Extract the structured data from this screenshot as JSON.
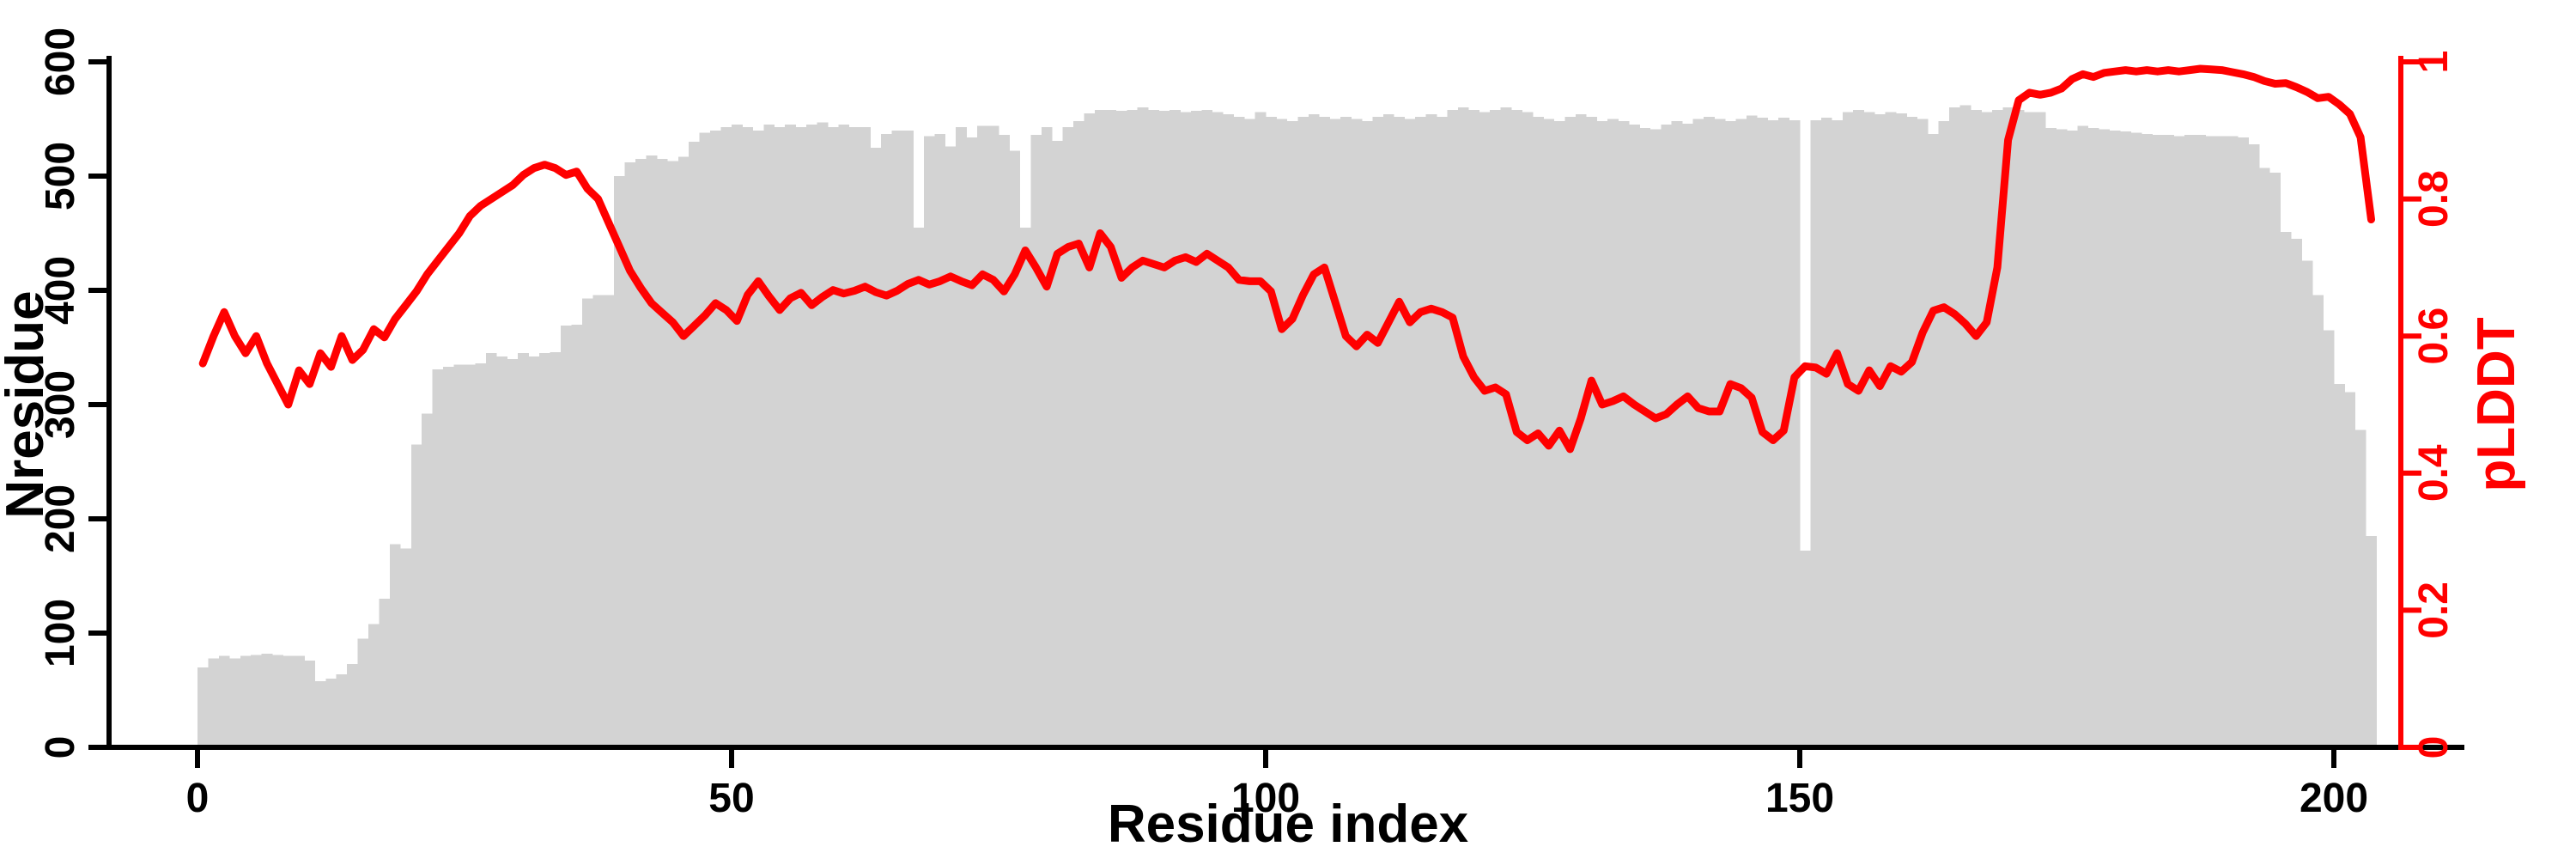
{
  "chart_data": {
    "type": "bar",
    "title": "",
    "xlabel": "Residue index",
    "ylabel_left": "Nresidue",
    "ylabel_right": "pLDDT",
    "xlim": [
      0,
      204
    ],
    "ylim_left": [
      0,
      600
    ],
    "ylim_right": [
      0,
      1
    ],
    "x_ticks": [
      0,
      50,
      100,
      150,
      200
    ],
    "y_ticks_left": [
      0,
      100,
      200,
      300,
      400,
      500,
      600
    ],
    "y_ticks_right": [
      0,
      0.2,
      0.4,
      0.6,
      0.8,
      1
    ],
    "grid": false,
    "legend": "none",
    "background_color": "#ffffff",
    "axis_color": "#000000",
    "series": [
      {
        "name": "Nresidue",
        "type": "bar",
        "axis": "left",
        "color": "#d3d3d3",
        "values": [
          70,
          78,
          80,
          78,
          80,
          81,
          82,
          81,
          80,
          80,
          76,
          58,
          60,
          64,
          73,
          95,
          108,
          130,
          178,
          174,
          265,
          292,
          331,
          333,
          335,
          335,
          336,
          345,
          342,
          340,
          345,
          342,
          345,
          346,
          369,
          370,
          393,
          396,
          396,
          500,
          512,
          515,
          518,
          515,
          513,
          517,
          530,
          538,
          540,
          543,
          545,
          543,
          540,
          545,
          543,
          545,
          543,
          545,
          547,
          543,
          545,
          543,
          543,
          525,
          537,
          540,
          540,
          455,
          535,
          537,
          526,
          543,
          534,
          544,
          544,
          536,
          522,
          455,
          536,
          543,
          531,
          543,
          548,
          555,
          558,
          558,
          557,
          558,
          560,
          558,
          557,
          558,
          556,
          557,
          558,
          556,
          554,
          552,
          550,
          556,
          552,
          550,
          548,
          552,
          554,
          552,
          550,
          552,
          550,
          548,
          552,
          554,
          552,
          550,
          552,
          554,
          552,
          558,
          560,
          558,
          556,
          558,
          560,
          558,
          556,
          552,
          550,
          548,
          552,
          554,
          552,
          548,
          550,
          548,
          545,
          542,
          541,
          545,
          548,
          546,
          550,
          552,
          550,
          548,
          550,
          553,
          551,
          549,
          551,
          549,
          172,
          549,
          551,
          549,
          556,
          558,
          556,
          554,
          556,
          555,
          552,
          550,
          537,
          548,
          560,
          562,
          558,
          556,
          558,
          560,
          558,
          556,
          556,
          542,
          541,
          540,
          544,
          542,
          541,
          540,
          539,
          538,
          537,
          536,
          536,
          535,
          536,
          536,
          535,
          535,
          535,
          534,
          528,
          507,
          503,
          451,
          445,
          426,
          396,
          365,
          318,
          311,
          278,
          185
        ]
      },
      {
        "name": "pLDDT",
        "type": "line",
        "axis": "right",
        "color": "#ff0000",
        "values": [
          0.56,
          0.6,
          0.635,
          0.6,
          0.575,
          0.6,
          0.56,
          0.53,
          0.5,
          0.55,
          0.53,
          0.575,
          0.555,
          0.6,
          0.565,
          0.58,
          0.61,
          0.598,
          0.625,
          0.645,
          0.665,
          0.69,
          0.71,
          0.73,
          0.75,
          0.775,
          0.79,
          0.8,
          0.81,
          0.82,
          0.835,
          0.845,
          0.85,
          0.845,
          0.835,
          0.84,
          0.815,
          0.8,
          0.765,
          0.73,
          0.695,
          0.67,
          0.648,
          0.634,
          0.62,
          0.6,
          0.615,
          0.63,
          0.648,
          0.638,
          0.622,
          0.66,
          0.68,
          0.658,
          0.638,
          0.655,
          0.663,
          0.645,
          0.657,
          0.667,
          0.662,
          0.666,
          0.672,
          0.664,
          0.659,
          0.666,
          0.676,
          0.682,
          0.675,
          0.68,
          0.687,
          0.68,
          0.674,
          0.69,
          0.682,
          0.665,
          0.69,
          0.725,
          0.7,
          0.672,
          0.72,
          0.73,
          0.735,
          0.7,
          0.75,
          0.73,
          0.685,
          0.7,
          0.71,
          0.705,
          0.7,
          0.71,
          0.715,
          0.708,
          0.72,
          0.71,
          0.7,
          0.682,
          0.68,
          0.68,
          0.665,
          0.61,
          0.625,
          0.66,
          0.69,
          0.7,
          0.65,
          0.6,
          0.585,
          0.602,
          0.59,
          0.62,
          0.65,
          0.62,
          0.635,
          0.64,
          0.635,
          0.627,
          0.57,
          0.54,
          0.52,
          0.525,
          0.515,
          0.46,
          0.448,
          0.458,
          0.44,
          0.462,
          0.435,
          0.48,
          0.535,
          0.5,
          0.505,
          0.512,
          0.5,
          0.49,
          0.48,
          0.486,
          0.5,
          0.512,
          0.495,
          0.49,
          0.49,
          0.53,
          0.524,
          0.51,
          0.46,
          0.448,
          0.462,
          0.54,
          0.556,
          0.554,
          0.545,
          0.575,
          0.53,
          0.52,
          0.55,
          0.527,
          0.556,
          0.548,
          0.562,
          0.605,
          0.637,
          0.642,
          0.632,
          0.618,
          0.6,
          0.62,
          0.7,
          0.886,
          0.944,
          0.955,
          0.952,
          0.955,
          0.961,
          0.975,
          0.982,
          0.978,
          0.984,
          0.986,
          0.988,
          0.986,
          0.988,
          0.986,
          0.988,
          0.986,
          0.988,
          0.99,
          0.989,
          0.988,
          0.985,
          0.982,
          0.978,
          0.972,
          0.968,
          0.969,
          0.963,
          0.956,
          0.947,
          0.949,
          0.938,
          0.924,
          0.89,
          0.77
        ]
      }
    ]
  }
}
